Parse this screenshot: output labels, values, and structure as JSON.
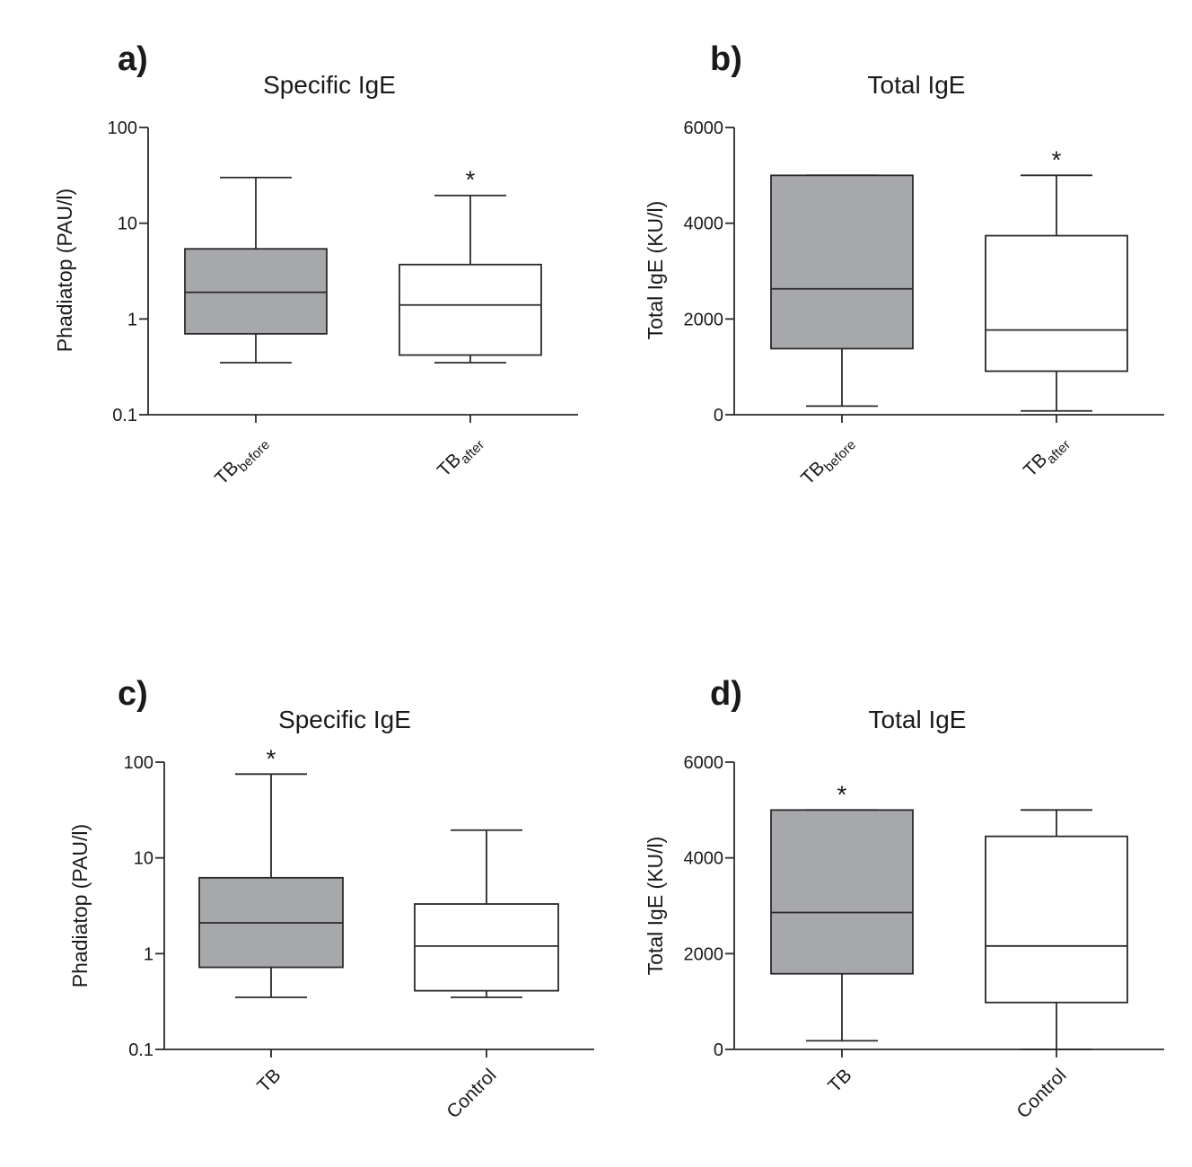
{
  "chart_data": [
    {
      "type": "box",
      "panel_label": "a)",
      "title": "Specific IgE",
      "ylabel": "Phadiatop (PAU/l)",
      "yscale": "log",
      "ylim": [
        0.1,
        100
      ],
      "yticks": [
        0.1,
        1,
        10,
        100
      ],
      "ytick_labels": [
        "0.1",
        "1",
        "10",
        "100"
      ],
      "categories": [
        {
          "base": "TB",
          "sub": "before"
        },
        {
          "base": "TB",
          "sub": "after"
        }
      ],
      "boxes": [
        {
          "whisker_low": 0.35,
          "q1": 0.7,
          "median": 1.9,
          "q3": 5.4,
          "whisker_high": 30,
          "fill": "#a7a8ab",
          "significance": ""
        },
        {
          "whisker_low": 0.35,
          "q1": 0.42,
          "median": 1.4,
          "q3": 3.7,
          "whisker_high": 19.5,
          "fill": "#ffffff",
          "significance": "*"
        }
      ]
    },
    {
      "type": "box",
      "panel_label": "b)",
      "title": "Total IgE",
      "ylabel": "Total IgE (KU/l)",
      "yscale": "linear",
      "ylim": [
        0,
        6000
      ],
      "yticks": [
        0,
        2000,
        4000,
        6000
      ],
      "ytick_labels": [
        "0",
        "2000",
        "4000",
        "6000"
      ],
      "categories": [
        {
          "base": "TB",
          "sub": "before"
        },
        {
          "base": "TB",
          "sub": "after"
        }
      ],
      "boxes": [
        {
          "whisker_low": 180,
          "q1": 1380,
          "median": 2630,
          "q3": 5000,
          "whisker_high": 5000,
          "fill": "#a7a8ab",
          "significance": ""
        },
        {
          "whisker_low": 80,
          "q1": 910,
          "median": 1770,
          "q3": 3740,
          "whisker_high": 5000,
          "fill": "#ffffff",
          "significance": "*"
        }
      ]
    },
    {
      "type": "box",
      "panel_label": "c)",
      "title": "Specific IgE",
      "ylabel": "Phadiatop (PAU/l)",
      "yscale": "log",
      "ylim": [
        0.1,
        100
      ],
      "yticks": [
        0.1,
        1,
        10,
        100
      ],
      "ytick_labels": [
        "0.1",
        "1",
        "10",
        "100"
      ],
      "categories": [
        {
          "base": "TB",
          "sub": ""
        },
        {
          "base": "Control",
          "sub": ""
        }
      ],
      "boxes": [
        {
          "whisker_low": 0.35,
          "q1": 0.72,
          "median": 2.1,
          "q3": 6.2,
          "whisker_high": 75,
          "fill": "#a7a8ab",
          "significance": "*"
        },
        {
          "whisker_low": 0.35,
          "q1": 0.41,
          "median": 1.2,
          "q3": 3.3,
          "whisker_high": 19.5,
          "fill": "#ffffff",
          "significance": ""
        }
      ]
    },
    {
      "type": "box",
      "panel_label": "d)",
      "title": "Total IgE",
      "ylabel": "Total IgE (KU/l)",
      "yscale": "linear",
      "ylim": [
        0,
        6000
      ],
      "yticks": [
        0,
        2000,
        4000,
        6000
      ],
      "ytick_labels": [
        "0",
        "2000",
        "4000",
        "6000"
      ],
      "categories": [
        {
          "base": "TB",
          "sub": ""
        },
        {
          "base": "Control",
          "sub": ""
        }
      ],
      "boxes": [
        {
          "whisker_low": 180,
          "q1": 1580,
          "median": 2860,
          "q3": 5000,
          "whisker_high": 5000,
          "fill": "#a7a8ab",
          "significance": "*"
        },
        {
          "whisker_low": 0,
          "q1": 980,
          "median": 2160,
          "q3": 4450,
          "whisker_high": 5000,
          "fill": "#ffffff",
          "significance": ""
        }
      ]
    }
  ]
}
